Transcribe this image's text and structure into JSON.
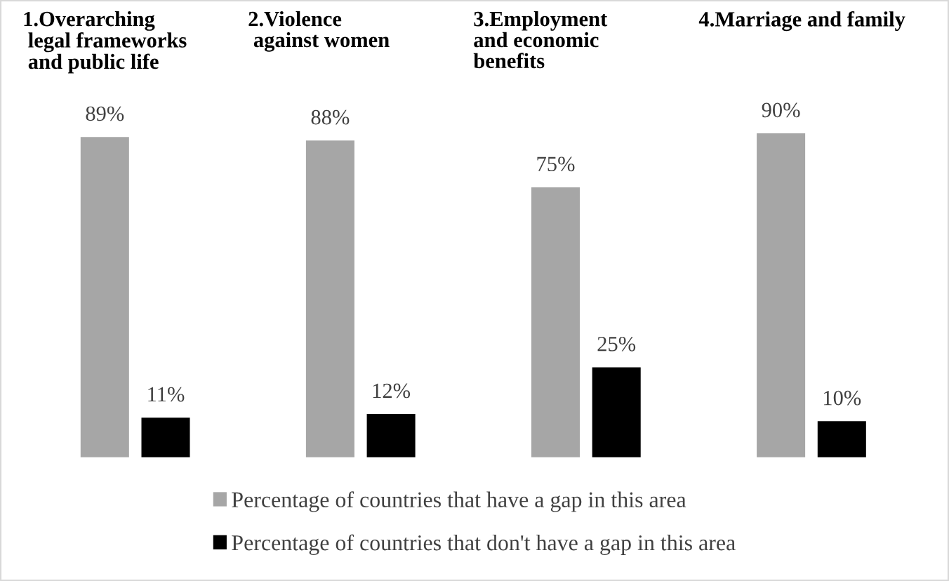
{
  "chart_data": {
    "type": "bar",
    "categories": [
      "1.Overarching\n legal frameworks\n and public life",
      "2.Violence\n against women",
      "3.Employment\nand economic\nbenefits",
      "4.Marriage and family"
    ],
    "series": [
      {
        "name": "Percentage of countries that have a gap in this area",
        "color": "#a6a6a6",
        "values": [
          89,
          88,
          75,
          90
        ],
        "value_labels": [
          "89%",
          "88%",
          "75%",
          "90%"
        ]
      },
      {
        "name": "Percentage of countries that don't have a gap in this area",
        "color": "#000000",
        "values": [
          11,
          12,
          25,
          10
        ],
        "value_labels": [
          "11%",
          "12%",
          "25%",
          "10%"
        ]
      }
    ],
    "legend": "bottom"
  }
}
